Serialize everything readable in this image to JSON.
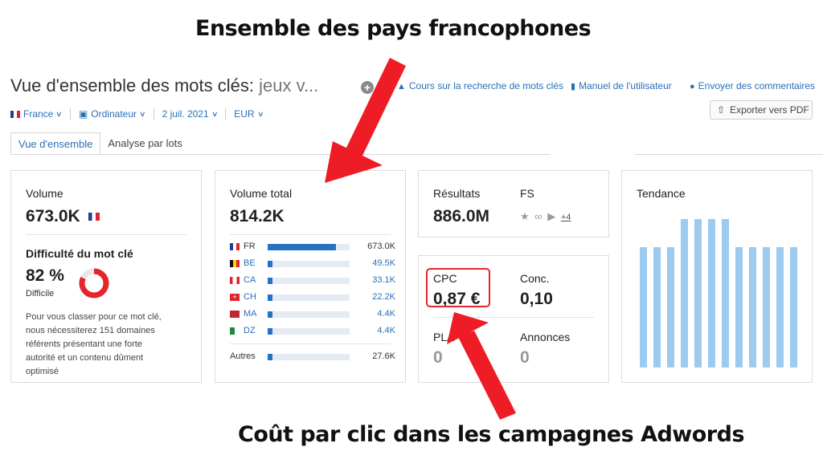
{
  "annotations": {
    "top": "Ensemble des pays francophones",
    "bottom": "Coût par clic dans les campagnes Adwords"
  },
  "header": {
    "title": "Vue d'ensemble des mots clés:",
    "keyword": "jeux v...",
    "links": [
      {
        "label": "Cours sur la recherche de mots clés",
        "icon": "graduation-cap-icon"
      },
      {
        "label": "Manuel de l'utilisateur",
        "icon": "book-icon"
      },
      {
        "label": "Envoyer des commentaires",
        "icon": "chat-icon"
      }
    ],
    "export_label": "Exporter vers PDF"
  },
  "filters": {
    "country": "France",
    "device": "Ordinateur",
    "date": "2 juil. 2021",
    "currency": "EUR"
  },
  "tabs": [
    "Vue d'ensemble",
    "Analyse par lots"
  ],
  "volume_card": {
    "label": "Volume",
    "value": "673.0K",
    "difficulty_label": "Difficulté du mot clé",
    "difficulty_value": "82 %",
    "difficulty_percent": 82,
    "difficulty_level": "Difficile",
    "description_lines": [
      "Pour vous classer pour ce mot clé,",
      "nous nécessiterez 151 domaines",
      "référents présentant une forte",
      "autorité et un contenu dûment",
      "optimisé"
    ]
  },
  "total_card": {
    "label": "Volume total",
    "value": "814.2K",
    "countries": [
      {
        "code": "FR",
        "value": "673.0K",
        "share": 0.83
      },
      {
        "code": "BE",
        "value": "49.5K",
        "share": 0.06
      },
      {
        "code": "CA",
        "value": "33.1K",
        "share": 0.04
      },
      {
        "code": "CH",
        "value": "22.2K",
        "share": 0.03
      },
      {
        "code": "MA",
        "value": "4.4K",
        "share": 0.01
      },
      {
        "code": "DZ",
        "value": "4.4K",
        "share": 0.01
      }
    ],
    "other_label": "Autres",
    "other_value": "27.6K",
    "other_share": 0.03
  },
  "results_card": {
    "results_label": "Résultats",
    "results_value": "886.0M",
    "fs_label": "FS",
    "fs_more": "+4"
  },
  "cpc_card": {
    "cpc_label": "CPC",
    "cpc_value": "0,87 €",
    "conc_label": "Conc.",
    "conc_value": "0,10",
    "pla_label": "PLA",
    "pla_value": "0",
    "ads_label": "Annonces",
    "ads_value": "0"
  },
  "trend_card": {
    "label": "Tendance",
    "values": [
      0.81,
      0.81,
      0.81,
      1.0,
      1.0,
      1.0,
      1.0,
      0.81,
      0.81,
      0.81,
      0.81,
      0.81
    ]
  },
  "colors": {
    "accent": "#2b6fb5",
    "bar": "#2473c2",
    "trend": "#9ccbef",
    "difficulty": "#e3262b",
    "highlight": "#e3262b"
  }
}
